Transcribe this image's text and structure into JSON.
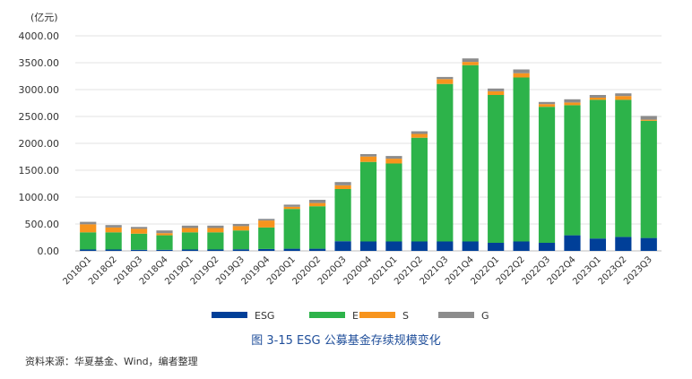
{
  "chart_data": {
    "type": "bar",
    "stacked": true,
    "unit_label": "(亿元)",
    "categories": [
      "2018Q1",
      "2018Q2",
      "2018Q3",
      "2018Q4",
      "2019Q1",
      "2019Q2",
      "2019Q3",
      "2019Q4",
      "2020Q1",
      "2020Q2",
      "2020Q3",
      "2020Q4",
      "2021Q1",
      "2021Q2",
      "2021Q3",
      "2021Q4",
      "2022Q1",
      "2022Q2",
      "2022Q3",
      "2022Q4",
      "2023Q1",
      "2023Q2",
      "2023Q3"
    ],
    "series": [
      {
        "name": "ESG",
        "color": "#003f98",
        "values": [
          25,
          25,
          20,
          20,
          25,
          25,
          30,
          35,
          40,
          40,
          180,
          175,
          175,
          175,
          175,
          175,
          150,
          175,
          150,
          290,
          230,
          260,
          240
        ]
      },
      {
        "name": "E",
        "color": "#2db34a",
        "values": [
          320,
          320,
          300,
          270,
          320,
          320,
          350,
          400,
          740,
          790,
          970,
          1480,
          1450,
          1930,
          2930,
          3280,
          2750,
          3050,
          2530,
          2420,
          2580,
          2550,
          2180
        ]
      },
      {
        "name": "S",
        "color": "#f7941d",
        "values": [
          150,
          90,
          90,
          40,
          80,
          80,
          80,
          130,
          40,
          60,
          70,
          100,
          90,
          70,
          90,
          60,
          70,
          80,
          50,
          50,
          40,
          70,
          20
        ]
      },
      {
        "name": "G",
        "color": "#8c8c8c",
        "values": [
          45,
          45,
          35,
          50,
          45,
          45,
          40,
          30,
          40,
          60,
          60,
          45,
          50,
          50,
          40,
          65,
          50,
          70,
          40,
          60,
          50,
          50,
          70
        ]
      }
    ],
    "ylim": [
      0,
      4000
    ],
    "yticks": [
      "0.00",
      "500.00",
      "1000.00",
      "1500.00",
      "2000.00",
      "2500.00",
      "3000.00",
      "3500.00",
      "4000.00"
    ],
    "legend_position": "bottom",
    "grid": true
  },
  "caption": "图 3-15   ESG 公募基金存续规模变化",
  "source": "资料来源：华夏基金、Wind，编者整理"
}
